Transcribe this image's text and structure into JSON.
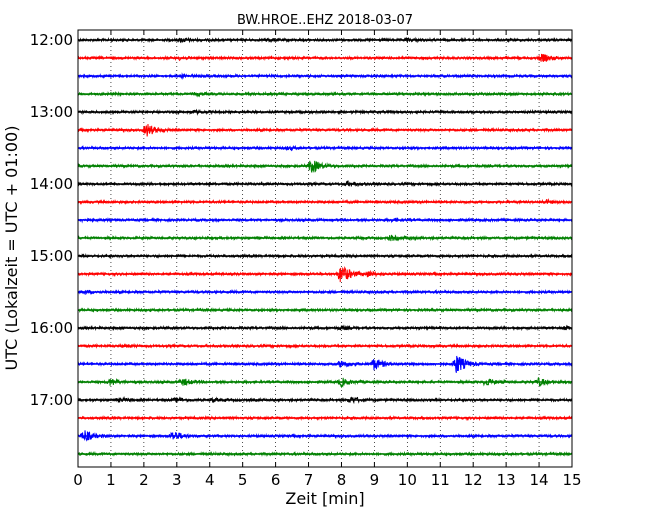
{
  "chart_data": {
    "type": "line",
    "title": "BW.HROE..EHZ 2018-03-07",
    "xlabel": "Zeit  [min]",
    "ylabel": "UTC (Lokalzeit = UTC + 01:00)",
    "xlim": [
      0,
      15
    ],
    "x_ticks": [
      0,
      1,
      2,
      3,
      4,
      5,
      6,
      7,
      8,
      9,
      10,
      11,
      12,
      13,
      14,
      15
    ],
    "y_tick_labels": [
      "12:00",
      "13:00",
      "14:00",
      "15:00",
      "16:00",
      "17:00"
    ],
    "grid": "vertical dotted",
    "color_cycle": [
      "#000000",
      "#ff0000",
      "#0000ff",
      "#008000"
    ],
    "series": [
      {
        "start": "12:00",
        "events": [
          {
            "t": 3.15,
            "amp": 0.8
          },
          {
            "t": 5.8,
            "amp": 0.6
          },
          {
            "t": 10.0,
            "amp": 0.5
          }
        ]
      },
      {
        "start": "12:15",
        "events": [
          {
            "t": 3.1,
            "amp": 0.6
          },
          {
            "t": 14.1,
            "amp": 1.6
          }
        ]
      },
      {
        "start": "12:30",
        "events": [
          {
            "t": 3.2,
            "amp": 0.5
          }
        ]
      },
      {
        "start": "12:45",
        "events": [
          {
            "t": 3.6,
            "amp": 0.5
          }
        ]
      },
      {
        "start": "13:00",
        "events": [
          {
            "t": 3.5,
            "amp": 0.6
          }
        ]
      },
      {
        "start": "13:15",
        "events": [
          {
            "t": 2.1,
            "amp": 2.8
          }
        ]
      },
      {
        "start": "13:30",
        "events": [
          {
            "t": 6.4,
            "amp": 0.5
          }
        ]
      },
      {
        "start": "13:45",
        "events": [
          {
            "t": 7.1,
            "amp": 3.2
          }
        ]
      },
      {
        "start": "14:00",
        "events": [
          {
            "t": 8.2,
            "amp": 1.0
          }
        ]
      },
      {
        "start": "14:15",
        "events": [
          {
            "t": 14.2,
            "amp": 0.7
          }
        ]
      },
      {
        "start": "14:30",
        "events": [
          {
            "t": 0.2,
            "amp": 0.5
          },
          {
            "t": 9.6,
            "amp": 0.5
          }
        ]
      },
      {
        "start": "14:45",
        "events": [
          {
            "t": 9.5,
            "amp": 1.0
          },
          {
            "t": 10.0,
            "amp": 0.6
          }
        ]
      },
      {
        "start": "15:00",
        "events": []
      },
      {
        "start": "15:15",
        "events": [
          {
            "t": 8.0,
            "amp": 4.5
          },
          {
            "t": 8.8,
            "amp": 1.2
          }
        ]
      },
      {
        "start": "15:30",
        "events": [
          {
            "t": 0.2,
            "amp": 0.6
          }
        ]
      },
      {
        "start": "15:45",
        "events": []
      },
      {
        "start": "16:00",
        "events": [
          {
            "t": 8.0,
            "amp": 0.6
          },
          {
            "t": 14.8,
            "amp": 0.6
          }
        ]
      },
      {
        "start": "16:15",
        "events": [
          {
            "t": 1.4,
            "amp": 0.6
          }
        ]
      },
      {
        "start": "16:30",
        "events": [
          {
            "t": 8.0,
            "amp": 1.4
          },
          {
            "t": 9.0,
            "amp": 2.6
          },
          {
            "t": 11.5,
            "amp": 4.5
          }
        ]
      },
      {
        "start": "16:45",
        "events": [
          {
            "t": 1.0,
            "amp": 1.5
          },
          {
            "t": 3.2,
            "amp": 1.4
          },
          {
            "t": 8.0,
            "amp": 1.8
          },
          {
            "t": 12.4,
            "amp": 1.5
          },
          {
            "t": 14.0,
            "amp": 1.6
          }
        ]
      },
      {
        "start": "17:00",
        "events": [
          {
            "t": 1.3,
            "amp": 0.8
          },
          {
            "t": 3.0,
            "amp": 0.8
          },
          {
            "t": 4.1,
            "amp": 0.6
          },
          {
            "t": 8.3,
            "amp": 1.4
          }
        ]
      },
      {
        "start": "17:15",
        "events": []
      },
      {
        "start": "17:30",
        "events": [
          {
            "t": 0.2,
            "amp": 2.5
          },
          {
            "t": 2.9,
            "amp": 2.2
          }
        ]
      },
      {
        "start": "17:45",
        "events": []
      }
    ]
  }
}
